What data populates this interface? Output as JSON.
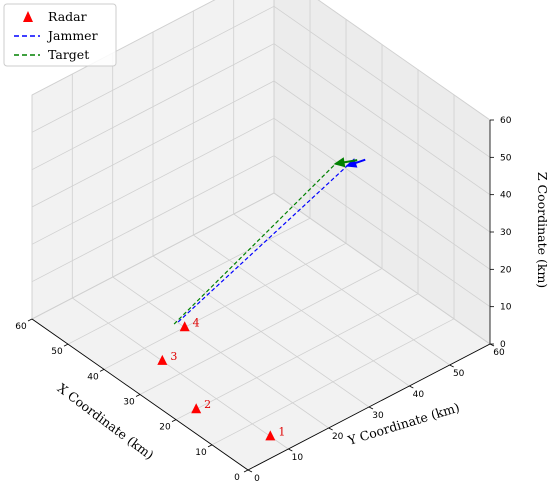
{
  "chart_data": {
    "type": "scatter",
    "projection": "3d",
    "grid": true,
    "legend_position": "top-left",
    "xlabel": "X Coordinate (km)",
    "ylabel": "Y Coordinate (km)",
    "zlabel": "Z Coordinate (km)",
    "xlim": [
      0,
      60
    ],
    "ylim": [
      0,
      60
    ],
    "zlim": [
      0,
      60
    ],
    "xticks": [
      0,
      10,
      20,
      30,
      40,
      50,
      60
    ],
    "yticks": [
      0,
      10,
      20,
      30,
      40,
      50,
      60
    ],
    "zticks": [
      0,
      10,
      20,
      30,
      40,
      50,
      60
    ],
    "legend": [
      {
        "label": "Radar",
        "style": "triangle",
        "color": "#ff0000"
      },
      {
        "label": "Jammer",
        "style": "dashed",
        "color": "#0000ff"
      },
      {
        "label": "Target",
        "style": "dashed",
        "color": "#008000"
      }
    ],
    "radars": [
      {
        "label": "1",
        "x": 5,
        "y": 10,
        "z": 0
      },
      {
        "label": "2",
        "x": 20,
        "y": 5,
        "z": 0
      },
      {
        "label": "3",
        "x": 35,
        "y": 10,
        "z": 0
      },
      {
        "label": "4",
        "x": 40,
        "y": 20,
        "z": 0
      }
    ],
    "series": [
      {
        "name": "Jammer",
        "color": "#0000ff",
        "start": {
          "x": 25,
          "y": 5,
          "z": 20
        },
        "end": {
          "x": 10,
          "y": 38,
          "z": 55
        },
        "arrow": {
          "x": 15,
          "y": 38,
          "z": 50
        }
      },
      {
        "name": "Target",
        "color": "#008000",
        "start": {
          "x": 25,
          "y": 4,
          "z": 20
        },
        "end": {
          "x": 10,
          "y": 36,
          "z": 56
        },
        "arrow": {
          "x": 16,
          "y": 36,
          "z": 51
        }
      }
    ]
  }
}
